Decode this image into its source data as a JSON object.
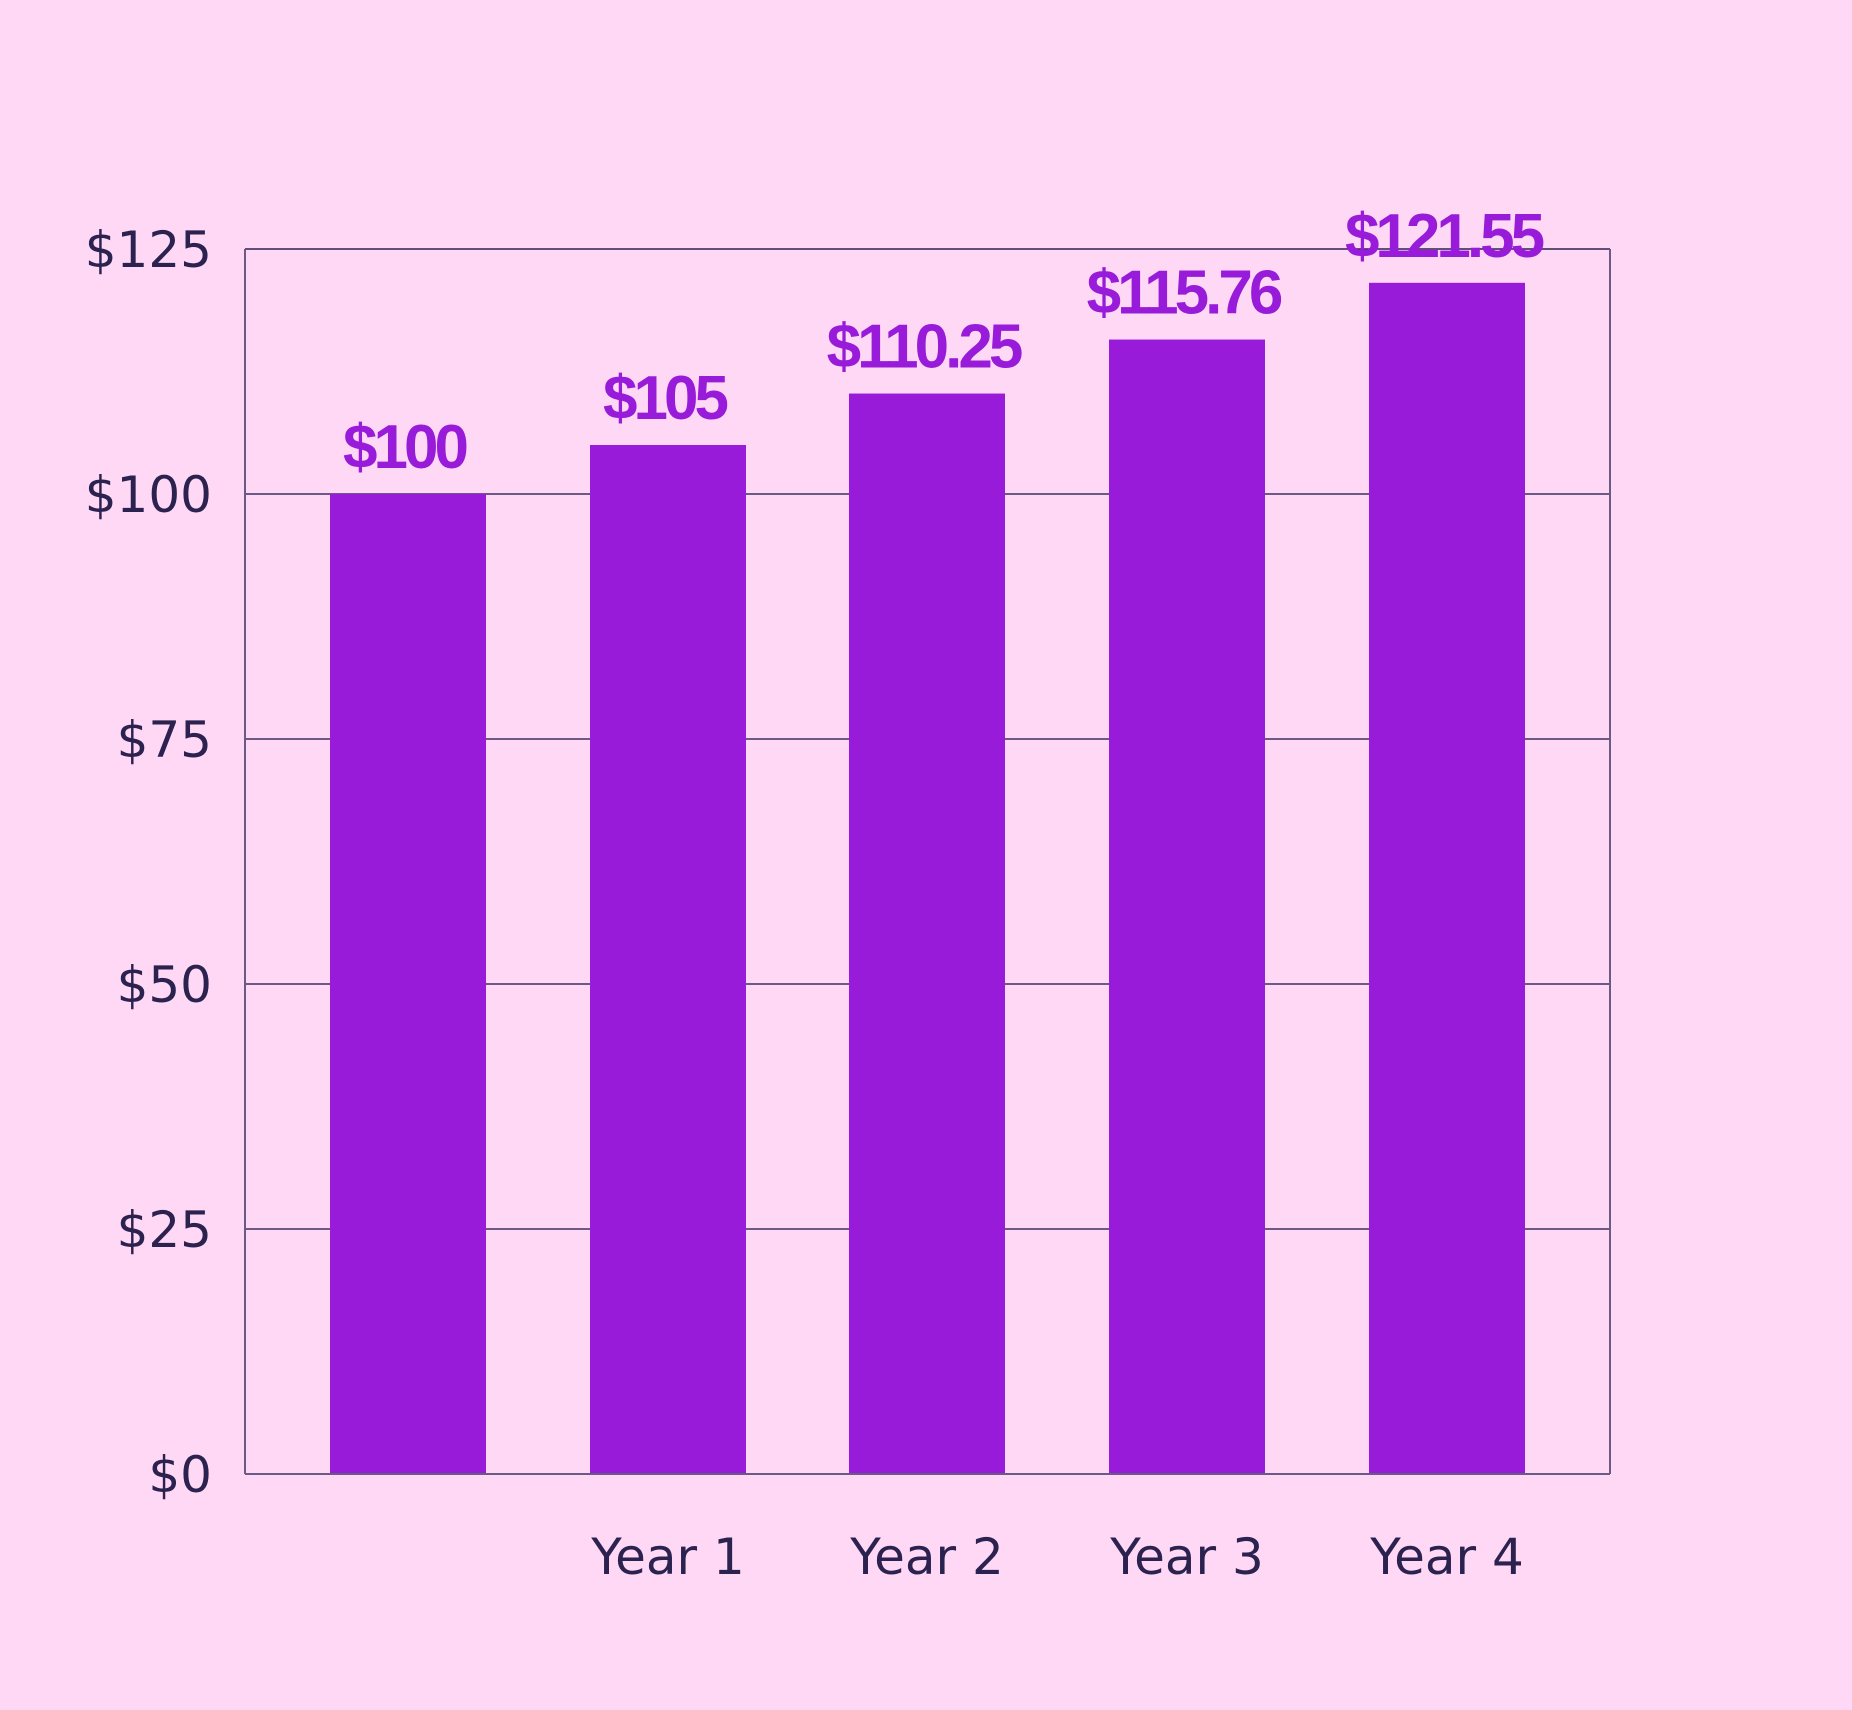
{
  "colors": {
    "background": "#ffd8f5",
    "bar": "#981bd9",
    "data_label": "#981bd9",
    "axis": "#6b5a86",
    "gridline": "#6b5a86",
    "tick_text": "#2b2250"
  },
  "chart_data": {
    "type": "bar",
    "title": "",
    "xlabel": "",
    "ylabel": "",
    "categories": [
      "",
      "Year 1",
      "Year 2",
      "Year 3",
      "Year 4"
    ],
    "values": [
      100,
      105,
      110.25,
      115.76,
      121.55
    ],
    "data_labels": [
      "$100",
      "$105",
      "$110.25",
      "$115.76",
      "$121.55"
    ],
    "y_ticks": [
      0,
      25,
      50,
      75,
      100,
      125
    ],
    "y_tick_labels": [
      "$0",
      "$25",
      "$50",
      "$75",
      "$100",
      "$125"
    ],
    "ylim": [
      0,
      125
    ],
    "grid": true,
    "legend": "none"
  }
}
